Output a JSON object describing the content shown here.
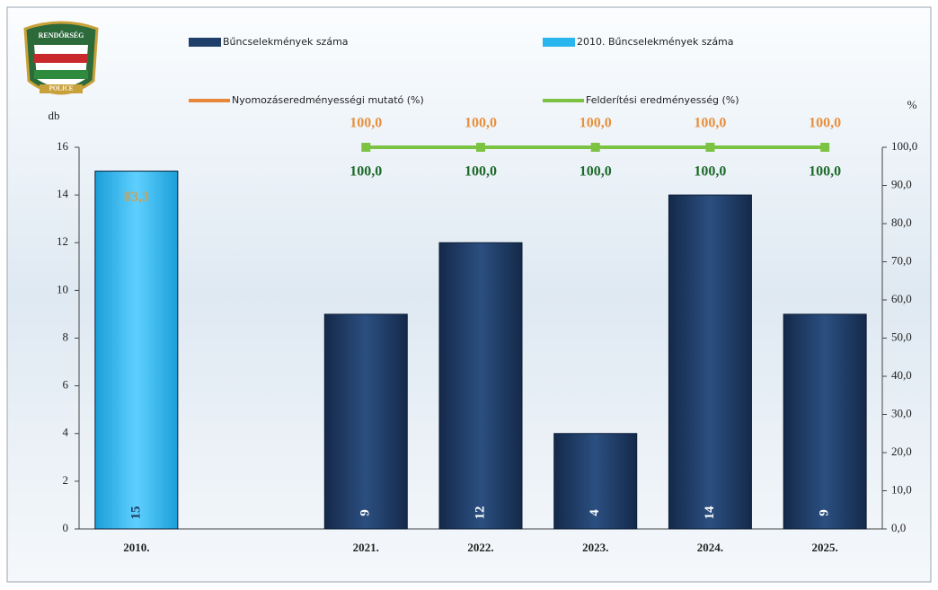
{
  "chart_data": {
    "type": "bar",
    "categories": [
      "2010.",
      null,
      "2021.",
      "2022.",
      "2023.",
      "2024.",
      "2025."
    ],
    "series": [
      {
        "name": "Bűncselekmények száma",
        "type": "bar",
        "color": "#1f3e6a",
        "values": [
          null,
          null,
          9,
          12,
          4,
          14,
          9
        ]
      },
      {
        "name": "2010. Bűncselekmények száma",
        "type": "bar",
        "color": "#29b5ee",
        "values": [
          15,
          null,
          null,
          null,
          null,
          null,
          null
        ]
      },
      {
        "name": "Nyomozáseredményességi mutató (%)",
        "type": "line",
        "axis": "y2",
        "color": "#e8873a",
        "values": [
          83.3,
          null,
          100,
          100,
          100,
          100,
          100
        ],
        "value_labels": [
          "83,3",
          null,
          "100,0",
          "100,0",
          "100,0",
          "100,0",
          "100,0"
        ]
      },
      {
        "name": "Felderítési eredményesség (%)",
        "type": "line",
        "axis": "y2",
        "color": "#7cc243",
        "values": [
          null,
          null,
          100,
          100,
          100,
          100,
          100
        ],
        "value_labels": [
          null,
          null,
          "100,0",
          "100,0",
          "100,0",
          "100,0",
          "100,0"
        ]
      }
    ],
    "ylabel": "db",
    "y2label": "%",
    "ylim": [
      0,
      16
    ],
    "yticks": [
      0,
      2,
      4,
      6,
      8,
      10,
      12,
      14,
      16
    ],
    "y2lim": [
      0,
      100
    ],
    "y2ticks": [
      {
        "value": 0,
        "label": "0,0"
      },
      {
        "value": 10,
        "label": "10,0"
      },
      {
        "value": 20,
        "label": "20,0"
      },
      {
        "value": 30,
        "label": "30,0"
      },
      {
        "value": 40,
        "label": "40,0"
      },
      {
        "value": 50,
        "label": "50,0"
      },
      {
        "value": 60,
        "label": "60,0"
      },
      {
        "value": 70,
        "label": "70,0"
      },
      {
        "value": 80,
        "label": "80,0"
      },
      {
        "value": 90,
        "label": "90,0"
      },
      {
        "value": 100,
        "label": "100,0"
      }
    ],
    "logo": {
      "top": "RENDŐRSÉG",
      "bottom": "POLICE"
    }
  }
}
